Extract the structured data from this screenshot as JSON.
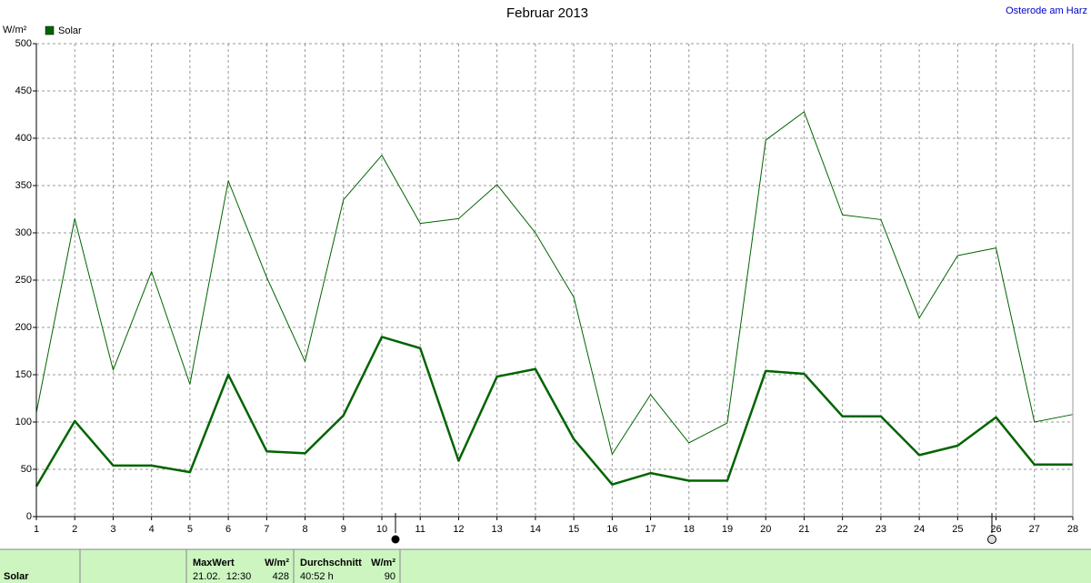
{
  "chart_data": {
    "type": "line",
    "title": "Februar 2013",
    "location": "Osterode am Harz",
    "y_label": "W/m²",
    "x": [
      1,
      2,
      3,
      4,
      5,
      6,
      7,
      8,
      9,
      10,
      11,
      12,
      13,
      14,
      15,
      16,
      17,
      18,
      19,
      20,
      21,
      22,
      23,
      24,
      25,
      26,
      27,
      28
    ],
    "xlim": [
      1,
      28
    ],
    "xticks": [
      1,
      2,
      3,
      4,
      5,
      6,
      7,
      8,
      9,
      10,
      11,
      12,
      13,
      14,
      15,
      16,
      17,
      18,
      19,
      20,
      21,
      22,
      23,
      24,
      25,
      26,
      27,
      28
    ],
    "ylim": [
      0,
      500
    ],
    "yticks": [
      0,
      50,
      100,
      150,
      200,
      250,
      300,
      350,
      400,
      450,
      500
    ],
    "grid": true,
    "series": [
      {
        "name": "Solar",
        "color": "#006400",
        "values": [
          32,
          101,
          54,
          54,
          47,
          150,
          69,
          67,
          107,
          190,
          178,
          59,
          148,
          156,
          82,
          34,
          46,
          38,
          38,
          154,
          151,
          106,
          106,
          65,
          75,
          105,
          55,
          55
        ]
      },
      {
        "color": "#006400",
        "values": [
          110,
          315,
          155,
          259,
          140,
          355,
          253,
          164,
          335,
          382,
          310,
          315,
          351,
          300,
          232,
          66,
          129,
          78,
          99,
          398,
          428,
          319,
          314,
          210,
          276,
          284,
          100,
          108
        ]
      }
    ]
  },
  "footer": {
    "label": "Solar",
    "max": {
      "heading": "MaxWert",
      "unit": "W/m²",
      "time": "21.02.  12:30",
      "value": 428
    },
    "avg": {
      "heading": "Durchschnitt",
      "unit": "W/m²",
      "time": "40:52 h",
      "value": 90
    }
  }
}
